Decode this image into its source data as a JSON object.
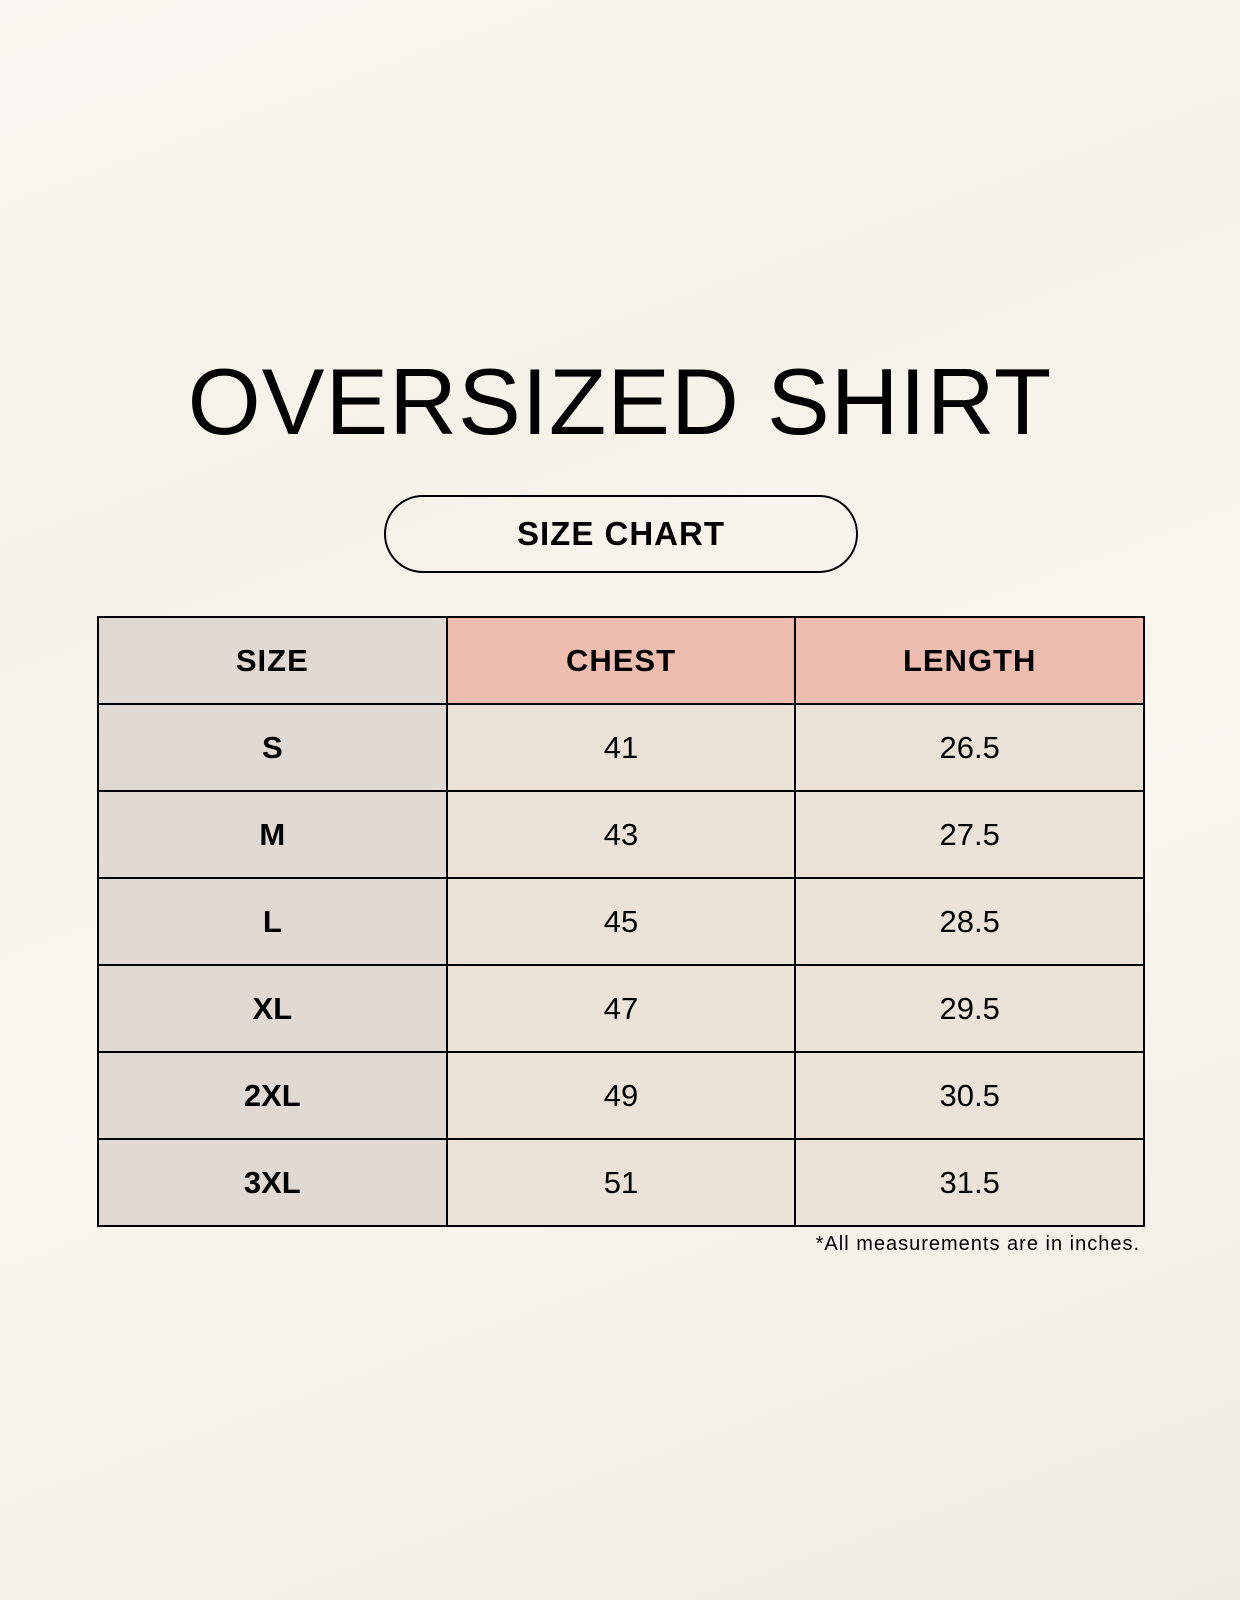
{
  "title": "OVERSIZED SHIRT",
  "subtitle": "SIZE CHART",
  "table": {
    "headers": [
      "SIZE",
      "CHEST",
      "LENGTH"
    ],
    "rows": [
      [
        "S",
        "41",
        "26.5"
      ],
      [
        "M",
        "43",
        "27.5"
      ],
      [
        "L",
        "45",
        "28.5"
      ],
      [
        "XL",
        "47",
        "29.5"
      ],
      [
        "2XL",
        "49",
        "30.5"
      ],
      [
        "3XL",
        "51",
        "31.5"
      ]
    ]
  },
  "footnote": "*All measurements are in inches.",
  "colors": {
    "size_column": "#e1d9d4",
    "header_accent": "#eebdb0",
    "cell": "#ebe3d8"
  }
}
